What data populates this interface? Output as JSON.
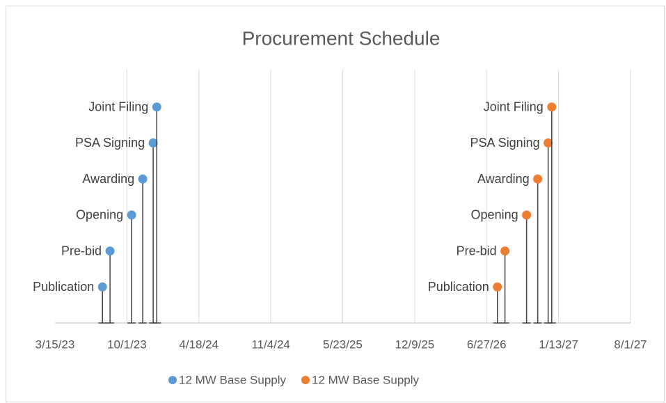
{
  "chart_data": {
    "type": "scatter",
    "title": "Procurement Schedule",
    "xlim": [
      45000,
      46600
    ],
    "xticks": [
      {
        "value": 45000,
        "label": "3/15/23"
      },
      {
        "value": 45200,
        "label": "10/1/23"
      },
      {
        "value": 45400,
        "label": "4/18/24"
      },
      {
        "value": 45600,
        "label": "11/4/24"
      },
      {
        "value": 45800,
        "label": "5/23/25"
      },
      {
        "value": 46000,
        "label": "12/9/25"
      },
      {
        "value": 46200,
        "label": "6/27/26"
      },
      {
        "value": 46400,
        "label": "1/13/27"
      },
      {
        "value": 46600,
        "label": "8/1/27"
      }
    ],
    "ylim": [
      0,
      7
    ],
    "grid": true,
    "drop_lines": true,
    "legend": "bottom",
    "series": [
      {
        "name": "12 MW Base Supply",
        "color": "#5b9bd5",
        "x": [
          45132,
          45153,
          45213,
          45244,
          45273,
          45283
        ],
        "values": [
          1,
          2,
          3,
          4,
          5,
          6
        ],
        "labels": [
          "Publication",
          "Pre-bid",
          "Opening",
          "Awarding",
          "PSA Signing",
          "Joint Filing"
        ]
      },
      {
        "name": "12 MW Base Supply",
        "color": "#ed7d31",
        "x": [
          46230,
          46251,
          46311,
          46342,
          46371,
          46381
        ],
        "values": [
          1,
          2,
          3,
          4,
          5,
          6
        ],
        "labels": [
          "Publication",
          "Pre-bid",
          "Opening",
          "Awarding",
          "PSA Signing",
          "Joint Filing"
        ]
      }
    ]
  }
}
